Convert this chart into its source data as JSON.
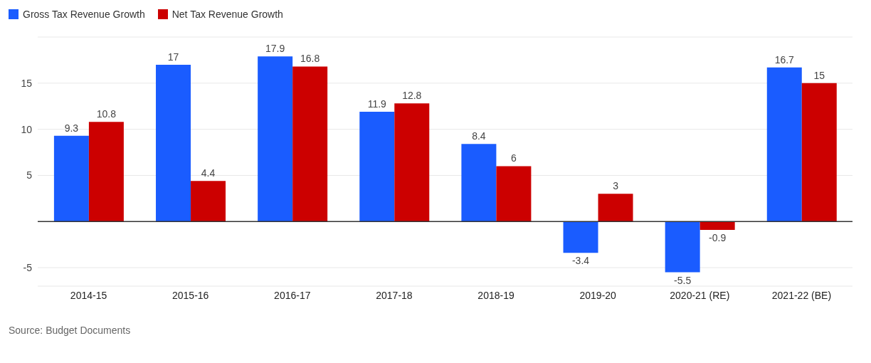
{
  "chart_data": {
    "type": "bar",
    "categories": [
      "2014-15",
      "2015-16",
      "2016-17",
      "2017-18",
      "2018-19",
      "2019-20",
      "2020-21 (RE)",
      "2021-22 (BE)"
    ],
    "series": [
      {
        "name": "Gross Tax Revenue Growth",
        "color": "#1a5cff",
        "values": [
          9.3,
          17,
          17.9,
          11.9,
          8.4,
          -3.4,
          -5.5,
          16.7
        ]
      },
      {
        "name": "Net Tax Revenue Growth",
        "color": "#cc0000",
        "values": [
          10.8,
          4.4,
          16.8,
          12.8,
          6,
          3,
          -0.9,
          15
        ]
      }
    ],
    "ylim": [
      -7,
      20
    ],
    "yticks": [
      -5,
      5,
      10,
      15
    ],
    "grid": "y",
    "legend": "top left",
    "data_labels": true,
    "ref_lines": [
      {
        "axis": "y",
        "value": 0,
        "color": "#333333"
      }
    ],
    "annotations": [
      "Source: Budget Documents"
    ]
  }
}
